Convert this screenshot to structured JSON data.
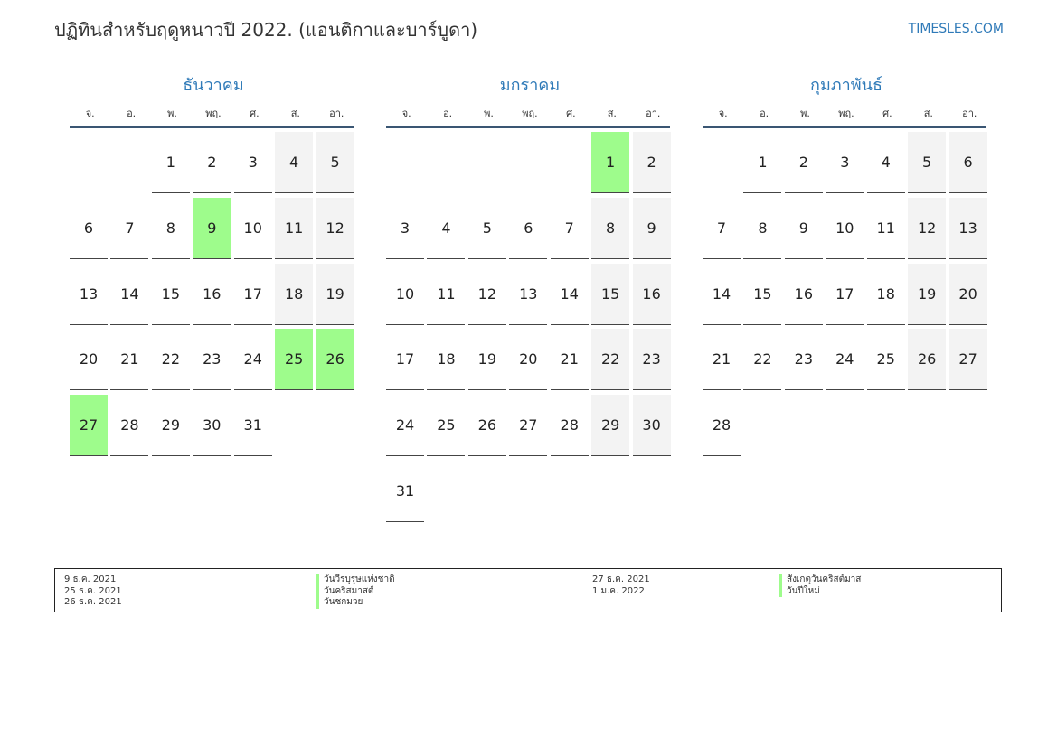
{
  "header": {
    "title": "ปฏิทินสำหรับฤดูหนาวปี 2022. (แอนติกาและบาร์บูดา)",
    "site": "TIMESLES.COM"
  },
  "weekday_labels": [
    "จ.",
    "อ.",
    "พ.",
    "พฤ.",
    "ศ.",
    "ส.",
    "อา."
  ],
  "months": [
    {
      "name": "ธันวาคม",
      "weeks": [
        [
          "",
          "",
          "1",
          "2",
          "3",
          "4",
          "5"
        ],
        [
          "6",
          "7",
          "8",
          "9",
          "10",
          "11",
          "12"
        ],
        [
          "13",
          "14",
          "15",
          "16",
          "17",
          "18",
          "19"
        ],
        [
          "20",
          "21",
          "22",
          "23",
          "24",
          "25",
          "26"
        ],
        [
          "27",
          "28",
          "29",
          "30",
          "31",
          "",
          ""
        ]
      ],
      "holidays": [
        "9",
        "25",
        "26",
        "27"
      ]
    },
    {
      "name": "มกราคม",
      "weeks": [
        [
          "",
          "",
          "",
          "",
          "",
          "1",
          "2"
        ],
        [
          "3",
          "4",
          "5",
          "6",
          "7",
          "8",
          "9"
        ],
        [
          "10",
          "11",
          "12",
          "13",
          "14",
          "15",
          "16"
        ],
        [
          "17",
          "18",
          "19",
          "20",
          "21",
          "22",
          "23"
        ],
        [
          "24",
          "25",
          "26",
          "27",
          "28",
          "29",
          "30"
        ],
        [
          "31",
          "",
          "",
          "",
          "",
          "",
          ""
        ]
      ],
      "holidays": [
        "1"
      ]
    },
    {
      "name": "กุมภาพันธ์",
      "weeks": [
        [
          "",
          "1",
          "2",
          "3",
          "4",
          "5",
          "6"
        ],
        [
          "7",
          "8",
          "9",
          "10",
          "11",
          "12",
          "13"
        ],
        [
          "14",
          "15",
          "16",
          "17",
          "18",
          "19",
          "20"
        ],
        [
          "21",
          "22",
          "23",
          "24",
          "25",
          "26",
          "27"
        ],
        [
          "28",
          "",
          "",
          "",
          "",
          "",
          ""
        ]
      ],
      "holidays": []
    }
  ],
  "legend": {
    "left": [
      {
        "date": "9 ธ.ค. 2021",
        "name": "วันวีรบุรุษแห่งชาติ"
      },
      {
        "date": "25 ธ.ค. 2021",
        "name": "วันคริสมาสต์"
      },
      {
        "date": "26 ธ.ค. 2021",
        "name": "วันชกมวย"
      }
    ],
    "right": [
      {
        "date": "27 ธ.ค. 2021",
        "name": "สังเกตุวันคริสต์มาส"
      },
      {
        "date": "1 ม.ค. 2022",
        "name": "วันปีใหม่"
      }
    ]
  },
  "colors": {
    "holiday": "#9efc8c",
    "weekend": "#f3f3f3",
    "accent": "#2f7ab8"
  }
}
